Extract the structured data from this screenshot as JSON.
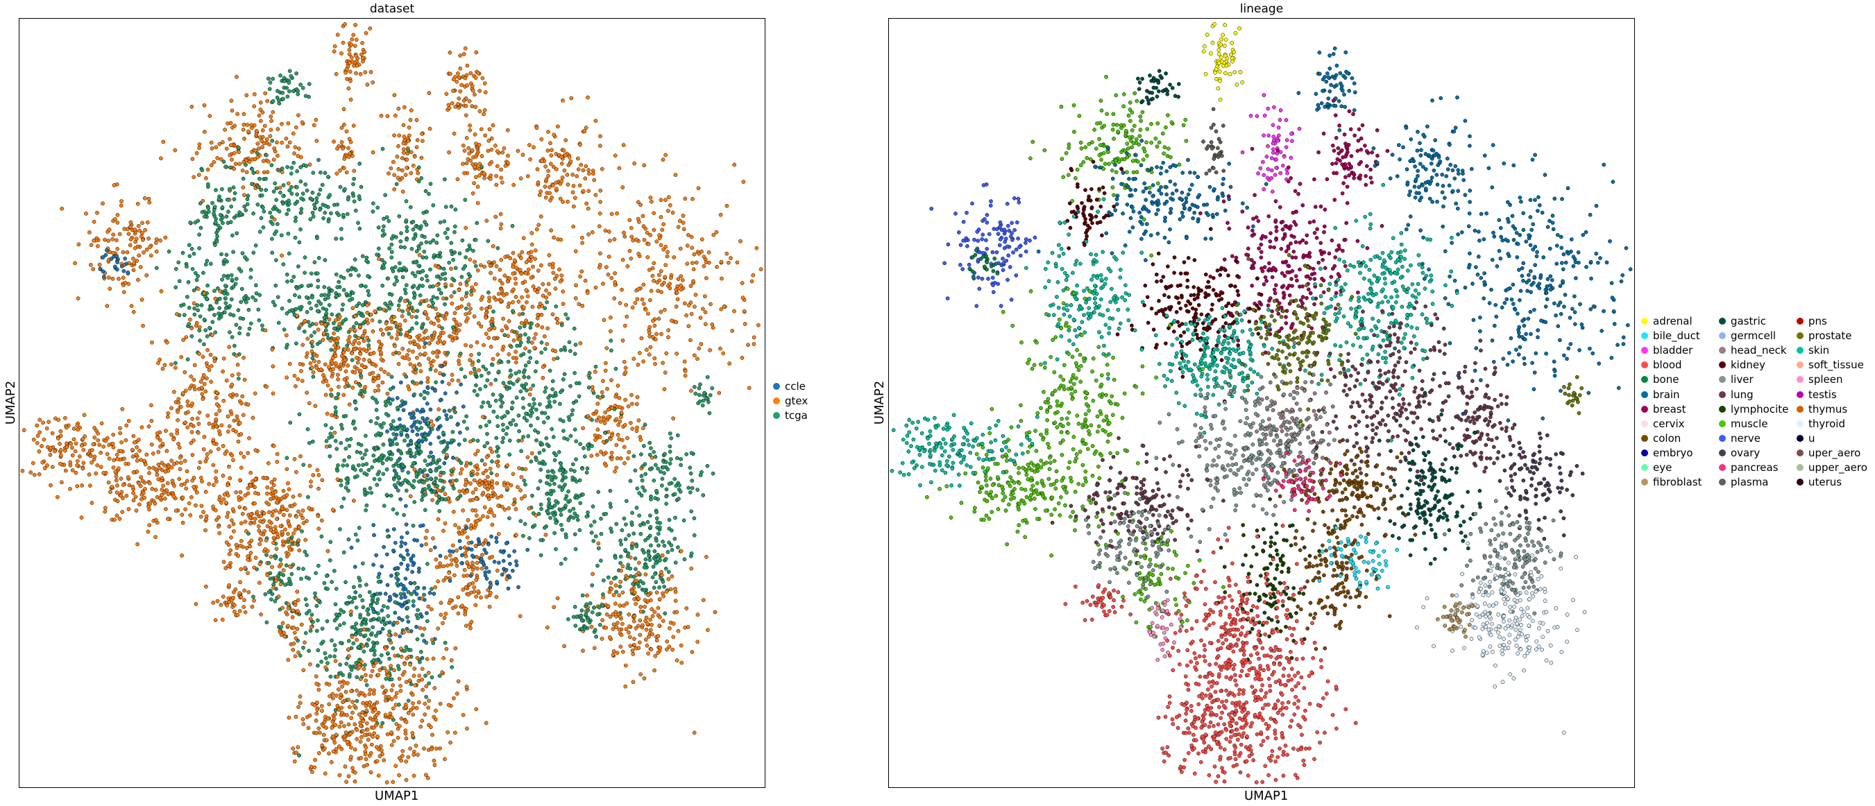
{
  "chart_data": [
    {
      "type": "scatter",
      "title": "dataset",
      "xlabel": "UMAP1",
      "ylabel": "UMAP2",
      "grid": false,
      "legend_position": "right",
      "series": [
        {
          "name": "ccle",
          "color": "#1f77b4"
        },
        {
          "name": "gtex",
          "color": "#ff7f0e"
        },
        {
          "name": "tcga",
          "color": "#279e68"
        }
      ]
    },
    {
      "type": "scatter",
      "title": "lineage",
      "xlabel": "UMAP1",
      "ylabel": "UMAP2",
      "grid": false,
      "legend_position": "right",
      "series": [
        {
          "name": "adrenal",
          "color": "#ffff00"
        },
        {
          "name": "bile_duct",
          "color": "#1ce6ff"
        },
        {
          "name": "bladder",
          "color": "#ff34ff"
        },
        {
          "name": "blood",
          "color": "#ff4a46"
        },
        {
          "name": "bone",
          "color": "#008941"
        },
        {
          "name": "brain",
          "color": "#006fa6"
        },
        {
          "name": "breast",
          "color": "#a30059"
        },
        {
          "name": "cervix",
          "color": "#ffdbe5"
        },
        {
          "name": "colon",
          "color": "#7a4900"
        },
        {
          "name": "embryo",
          "color": "#0000a6"
        },
        {
          "name": "eye",
          "color": "#63ffac"
        },
        {
          "name": "fibroblast",
          "color": "#b79762"
        },
        {
          "name": "gastric",
          "color": "#004d43"
        },
        {
          "name": "germcell",
          "color": "#8fb0ff"
        },
        {
          "name": "head_neck",
          "color": "#997d87"
        },
        {
          "name": "kidney",
          "color": "#5a0007"
        },
        {
          "name": "liver",
          "color": "#809693"
        },
        {
          "name": "lung",
          "color": "#6a3a4c"
        },
        {
          "name": "lymphocite",
          "color": "#1b4400"
        },
        {
          "name": "muscle",
          "color": "#4fc601"
        },
        {
          "name": "nerve",
          "color": "#3b5dff"
        },
        {
          "name": "ovary",
          "color": "#4a3b53"
        },
        {
          "name": "pancreas",
          "color": "#ff2f80"
        },
        {
          "name": "plasma",
          "color": "#61615a"
        },
        {
          "name": "pns",
          "color": "#ba0900"
        },
        {
          "name": "prostate",
          "color": "#6b7900"
        },
        {
          "name": "skin",
          "color": "#00c2a0"
        },
        {
          "name": "soft_tissue",
          "color": "#ffaa92"
        },
        {
          "name": "spleen",
          "color": "#ff90c9"
        },
        {
          "name": "testis",
          "color": "#b903aa"
        },
        {
          "name": "thymus",
          "color": "#d16100"
        },
        {
          "name": "thyroid",
          "color": "#ddefff"
        },
        {
          "name": "u",
          "color": "#000035"
        },
        {
          "name": "uper_aero",
          "color": "#7b4f4b"
        },
        {
          "name": "upper_aero",
          "color": "#a1c299"
        },
        {
          "name": "uterus",
          "color": "#300018"
        }
      ]
    }
  ]
}
